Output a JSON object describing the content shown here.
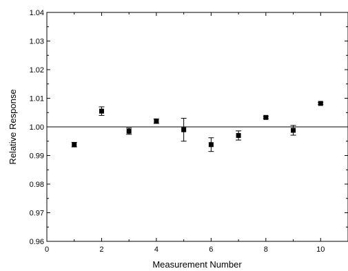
{
  "chart_data": {
    "type": "scatter",
    "xlabel": "Measurement Number",
    "ylabel": "Relative Response",
    "xlim": [
      0,
      11
    ],
    "ylim": [
      0.96,
      1.04
    ],
    "x_major_ticks": [
      "0",
      "2",
      "4",
      "6",
      "8",
      "10"
    ],
    "y_major_ticks": [
      "0.96",
      "0.97",
      "0.98",
      "0.99",
      "1.00",
      "1.01",
      "1.02",
      "1.03",
      "1.04"
    ],
    "grid": false,
    "legend": "none",
    "reference_line": {
      "y": 1.0
    },
    "marker": "filled-square",
    "series": [
      {
        "points": [
          {
            "x": 1,
            "y": 0.9938,
            "err": 0.0008
          },
          {
            "x": 2,
            "y": 1.0055,
            "err": 0.0015
          },
          {
            "x": 3,
            "y": 0.9985,
            "err": 0.0011
          },
          {
            "x": 4,
            "y": 1.002,
            "err": 0.0008
          },
          {
            "x": 5,
            "y": 0.999,
            "err": 0.004
          },
          {
            "x": 6,
            "y": 0.9938,
            "err": 0.0024
          },
          {
            "x": 7,
            "y": 0.997,
            "err": 0.0016
          },
          {
            "x": 8,
            "y": 1.0033,
            "err": 0.0004
          },
          {
            "x": 9,
            "y": 0.9988,
            "err": 0.0017
          },
          {
            "x": 10,
            "y": 1.0082,
            "err": 0.0004
          }
        ]
      }
    ]
  }
}
